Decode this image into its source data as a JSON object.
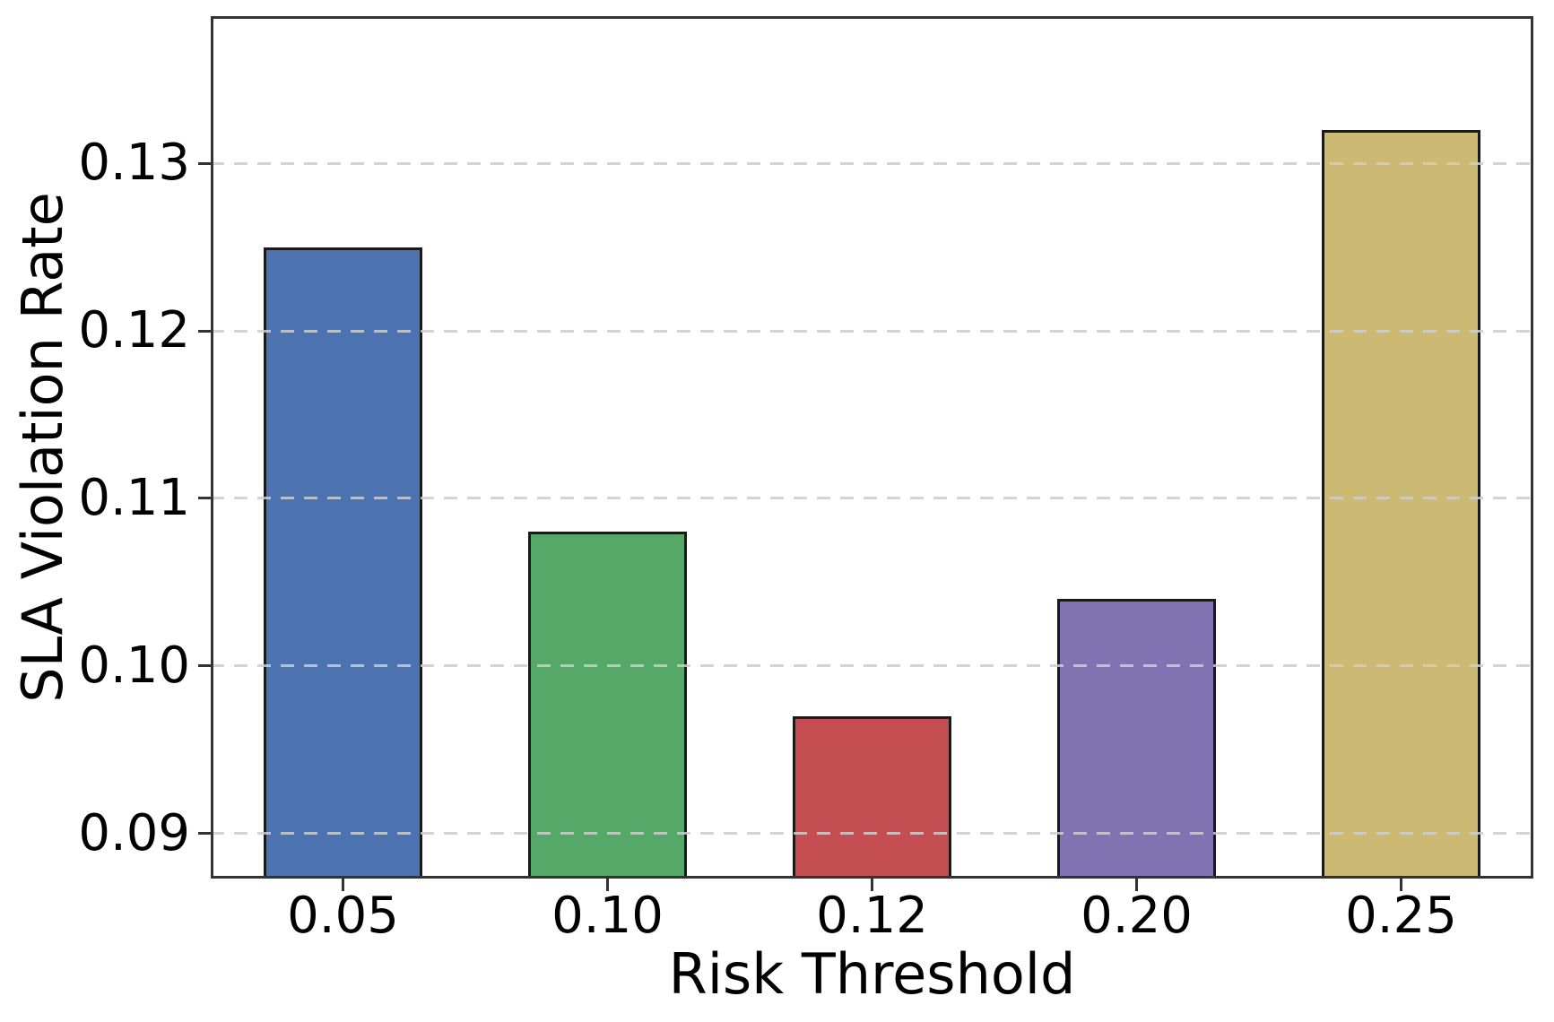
{
  "figure": {
    "background": "#ffffff"
  },
  "chart_data": {
    "type": "bar",
    "title": "",
    "xlabel": "Risk Threshold",
    "ylabel": "SLA Violation Rate",
    "categories": [
      "0.05",
      "0.10",
      "0.12",
      "0.20",
      "0.25"
    ],
    "values": [
      0.125,
      0.108,
      0.097,
      0.104,
      0.132
    ],
    "bar_colors": [
      "#4C72B0",
      "#55A868",
      "#C44E52",
      "#8172B2",
      "#CCB974"
    ],
    "bar_edge_color": "#1a1a1a",
    "ytick_labels": [
      "0.09",
      "0.10",
      "0.11",
      "0.12",
      "0.13"
    ],
    "ytick_values": [
      0.09,
      0.1,
      0.11,
      0.12,
      0.13
    ],
    "ylim": [
      0.0873,
      0.1388
    ],
    "bar_width_fraction": 0.6,
    "grid": {
      "axis": "y",
      "style": "dashed",
      "color": "#cdcdcd",
      "over_bars": true
    },
    "legend": "none"
  }
}
